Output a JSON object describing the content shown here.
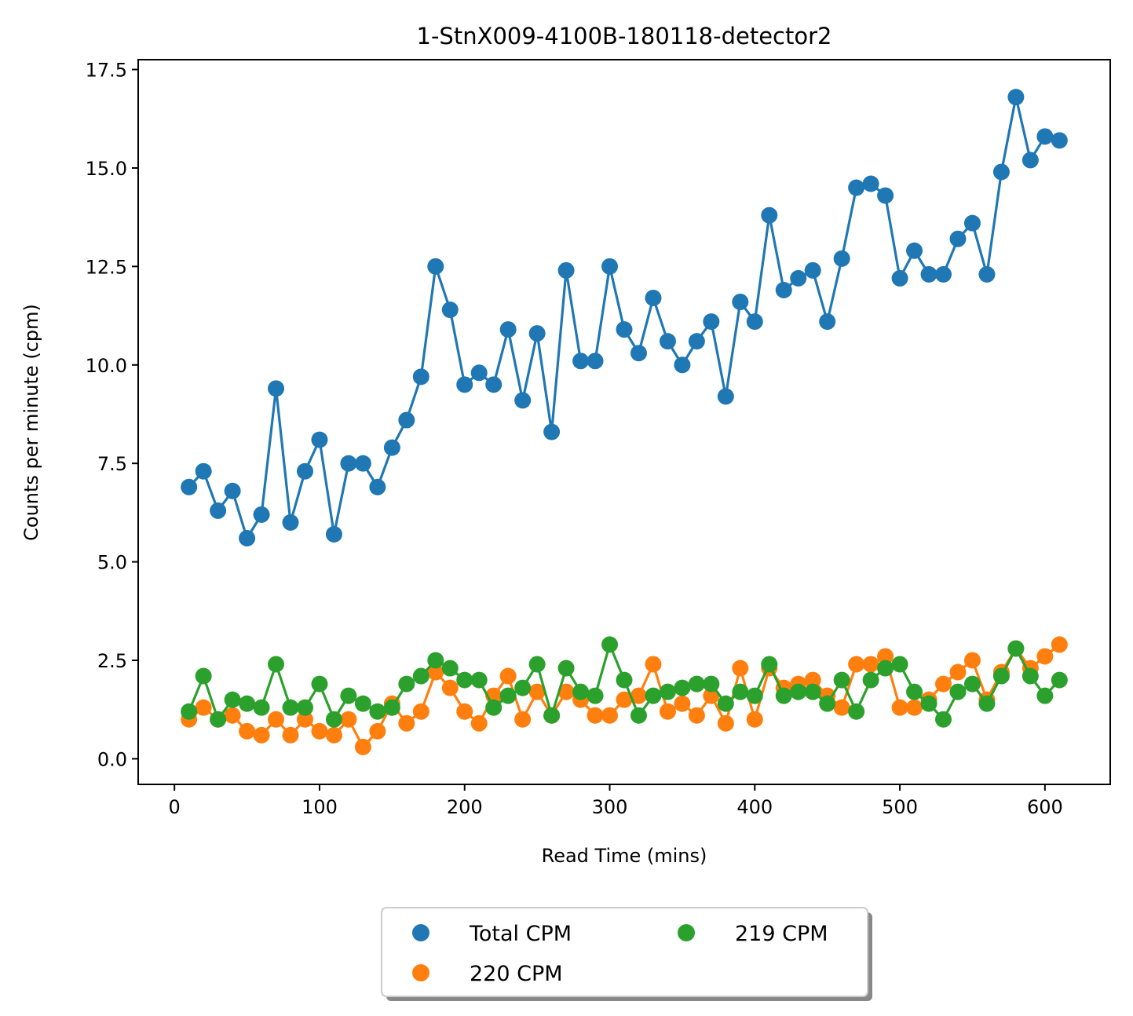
{
  "chart_data": {
    "type": "line",
    "title": "1-StnX009-4100B-180118-detector2",
    "xlabel": "Read Time (mins)",
    "ylabel": "Counts per minute (cpm)",
    "xlim": [
      -25,
      645
    ],
    "ylim": [
      -0.65,
      17.75
    ],
    "xticks": [
      0,
      100,
      200,
      300,
      400,
      500,
      600
    ],
    "xtick_labels": [
      "0",
      "100",
      "200",
      "300",
      "400",
      "500",
      "600"
    ],
    "yticks": [
      0,
      2.5,
      5,
      7.5,
      10,
      12.5,
      15,
      17.5
    ],
    "ytick_labels": [
      "0.0",
      "2.5",
      "5.0",
      "7.5",
      "10.0",
      "12.5",
      "15.0",
      "17.5"
    ],
    "grid": false,
    "legend_position": "below-center",
    "x": [
      10,
      20,
      30,
      40,
      50,
      60,
      70,
      80,
      90,
      100,
      110,
      120,
      130,
      140,
      150,
      160,
      170,
      180,
      190,
      200,
      210,
      220,
      230,
      240,
      250,
      260,
      270,
      280,
      290,
      300,
      310,
      320,
      330,
      340,
      350,
      360,
      370,
      380,
      390,
      400,
      410,
      420,
      430,
      440,
      450,
      460,
      470,
      480,
      490,
      500,
      510,
      520,
      530,
      540,
      550,
      560,
      570,
      580,
      590,
      600,
      610
    ],
    "series": [
      {
        "name": "Total CPM",
        "color": "#1f77b4",
        "values": [
          6.9,
          7.3,
          6.3,
          6.8,
          5.6,
          6.2,
          9.4,
          6.0,
          7.3,
          8.1,
          5.7,
          7.5,
          7.5,
          6.9,
          7.9,
          8.6,
          9.7,
          12.5,
          11.4,
          9.5,
          9.8,
          9.5,
          10.9,
          9.1,
          10.8,
          8.3,
          12.4,
          10.1,
          10.1,
          12.5,
          10.9,
          10.3,
          11.7,
          10.6,
          10.0,
          10.6,
          11.1,
          9.2,
          11.6,
          11.1,
          13.8,
          11.9,
          12.2,
          12.4,
          11.1,
          12.7,
          14.5,
          14.6,
          14.3,
          12.2,
          12.9,
          12.3,
          12.3,
          13.2,
          13.6,
          12.3,
          14.9,
          16.8,
          15.2,
          15.8,
          15.7
        ]
      },
      {
        "name": "220 CPM",
        "color": "#ff7f0e",
        "values": [
          1.0,
          1.3,
          1.0,
          1.1,
          0.7,
          0.6,
          1.0,
          0.6,
          1.0,
          0.7,
          0.6,
          1.0,
          0.3,
          0.7,
          1.4,
          0.9,
          1.2,
          2.2,
          1.8,
          1.2,
          0.9,
          1.6,
          2.1,
          1.0,
          1.7,
          1.1,
          1.7,
          1.5,
          1.1,
          1.1,
          1.5,
          1.6,
          2.4,
          1.2,
          1.4,
          1.1,
          1.6,
          0.9,
          2.3,
          1.0,
          2.3,
          1.8,
          1.9,
          2.0,
          1.6,
          1.3,
          2.4,
          2.4,
          2.6,
          1.3,
          1.3,
          1.5,
          1.9,
          2.2,
          2.5,
          1.5,
          2.2,
          2.8,
          2.3,
          2.6,
          2.9
        ]
      },
      {
        "name": "219 CPM",
        "color": "#2ca02c",
        "values": [
          1.2,
          2.1,
          1.0,
          1.5,
          1.4,
          1.3,
          2.4,
          1.3,
          1.3,
          1.9,
          1.0,
          1.6,
          1.4,
          1.2,
          1.3,
          1.9,
          2.1,
          2.5,
          2.3,
          2.0,
          2.0,
          1.3,
          1.6,
          1.8,
          2.4,
          1.1,
          2.3,
          1.7,
          1.6,
          2.9,
          2.0,
          1.1,
          1.6,
          1.7,
          1.8,
          1.9,
          1.9,
          1.4,
          1.7,
          1.6,
          2.4,
          1.6,
          1.7,
          1.7,
          1.4,
          2.0,
          1.2,
          2.0,
          2.3,
          2.4,
          1.7,
          1.4,
          1.0,
          1.7,
          1.9,
          1.4,
          2.1,
          2.8,
          2.1,
          1.6,
          2.0
        ]
      }
    ]
  }
}
